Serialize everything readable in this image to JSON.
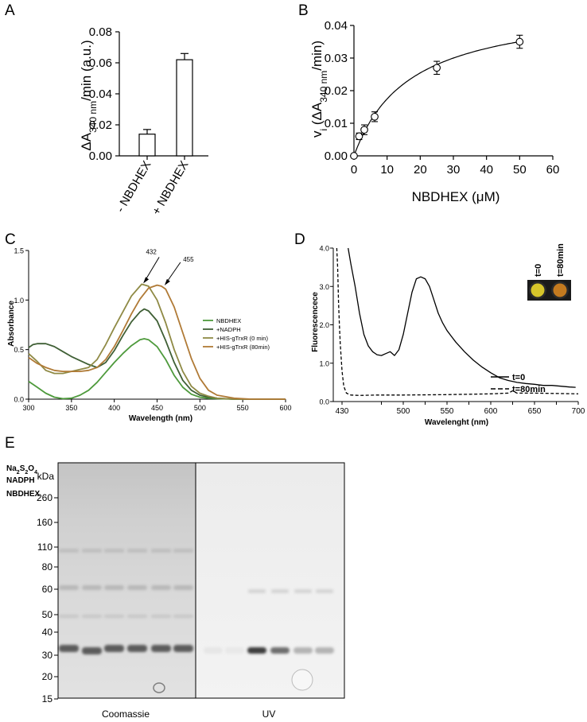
{
  "panel_letters": {
    "a": "A",
    "b": "B",
    "c": "C",
    "d": "D",
    "e": "E"
  },
  "chart_data": [
    {
      "panel": "A",
      "type": "bar",
      "categories": [
        "- NBDHEX",
        "+ NBDHEX"
      ],
      "values": [
        0.014,
        0.062
      ],
      "errors": [
        0.003,
        0.004
      ],
      "ylabel_parts": {
        "pre": "ΔA",
        "sub": "340 nm",
        "post": "/min (a.u.)"
      },
      "yticks": [
        "0.00",
        "0.02",
        "0.04",
        "0.06",
        "0.08"
      ],
      "ylim": [
        0,
        0.08
      ],
      "bar_fill": "#ffffff",
      "bar_stroke": "#000000"
    },
    {
      "panel": "B",
      "type": "scatter",
      "x": [
        0,
        1.56,
        3.125,
        6.25,
        25,
        50
      ],
      "y": [
        0.0,
        0.006,
        0.008,
        0.012,
        0.027,
        0.035
      ],
      "yerr": [
        0.0,
        0.001,
        0.0015,
        0.0015,
        0.002,
        0.002
      ],
      "fit": {
        "model": "michaelis-menten",
        "vmax": 0.0468,
        "km": 16.8
      },
      "xlabel": "NBDHEX (μM)",
      "ylabel_parts": {
        "pre": "v",
        "sub_i": "i",
        "mid": " (ΔA",
        "sub": "340 nm",
        "post": "/min)"
      },
      "xticks": [
        "0",
        "10",
        "20",
        "30",
        "40",
        "50",
        "60"
      ],
      "yticks": [
        "0.00",
        "0.01",
        "0.02",
        "0.03",
        "0.04"
      ],
      "xlim": [
        0,
        60
      ],
      "ylim": [
        0,
        0.04
      ]
    },
    {
      "panel": "C",
      "type": "line",
      "xlabel": "Wavelength (nm)",
      "ylabel": "Absorbance",
      "xticks": [
        "300",
        "350",
        "400",
        "450",
        "500",
        "550",
        "600"
      ],
      "yticks": [
        "0.0",
        "0.5",
        "1.0",
        "1.5"
      ],
      "xlim": [
        300,
        600
      ],
      "ylim": [
        0,
        1.5
      ],
      "annotations": [
        {
          "text": "432",
          "x": 432,
          "y": 1.16
        },
        {
          "text": "455",
          "x": 455,
          "y": 1.14
        }
      ],
      "legend_position": "right",
      "series": [
        {
          "name": "NBDHEX",
          "color": "#4e9a3c",
          "x": [
            300,
            310,
            320,
            330,
            340,
            350,
            360,
            370,
            380,
            390,
            400,
            410,
            420,
            430,
            435,
            440,
            450,
            460,
            470,
            480,
            490,
            500,
            510,
            520,
            540,
            560,
            600
          ],
          "y": [
            0.18,
            0.12,
            0.06,
            0.02,
            0.005,
            0.01,
            0.04,
            0.09,
            0.17,
            0.27,
            0.37,
            0.46,
            0.54,
            0.6,
            0.61,
            0.6,
            0.53,
            0.4,
            0.24,
            0.12,
            0.05,
            0.02,
            0.01,
            0.005,
            0.0,
            0.0,
            0.0
          ]
        },
        {
          "name": "+NADPH",
          "color": "#3f5f35",
          "x": [
            300,
            305,
            310,
            320,
            330,
            340,
            350,
            360,
            370,
            380,
            390,
            400,
            410,
            420,
            430,
            435,
            440,
            450,
            460,
            470,
            480,
            490,
            500,
            510,
            520,
            540,
            560,
            600
          ],
          "y": [
            0.52,
            0.55,
            0.56,
            0.56,
            0.53,
            0.48,
            0.43,
            0.39,
            0.35,
            0.32,
            0.37,
            0.49,
            0.64,
            0.78,
            0.88,
            0.91,
            0.89,
            0.79,
            0.59,
            0.37,
            0.19,
            0.09,
            0.04,
            0.02,
            0.01,
            0.0,
            0.0,
            0.0
          ]
        },
        {
          "name": "+HIS-gTrxR (0 min)",
          "color": "#8f8a45",
          "x": [
            300,
            310,
            320,
            330,
            340,
            350,
            360,
            370,
            380,
            390,
            400,
            410,
            420,
            430,
            432,
            440,
            450,
            460,
            470,
            480,
            490,
            500,
            510,
            520,
            540,
            560,
            600
          ],
          "y": [
            0.46,
            0.38,
            0.29,
            0.26,
            0.26,
            0.28,
            0.3,
            0.32,
            0.4,
            0.55,
            0.72,
            0.88,
            1.04,
            1.14,
            1.16,
            1.14,
            1.0,
            0.77,
            0.5,
            0.28,
            0.13,
            0.06,
            0.03,
            0.01,
            0.0,
            0.0,
            0.0
          ]
        },
        {
          "name": "+HIS-gTrxR  (80min)",
          "color": "#b07a36",
          "x": [
            300,
            310,
            320,
            330,
            340,
            350,
            360,
            370,
            380,
            390,
            400,
            410,
            420,
            430,
            440,
            450,
            455,
            460,
            470,
            480,
            490,
            500,
            510,
            520,
            540,
            560,
            600
          ],
          "y": [
            0.42,
            0.36,
            0.32,
            0.29,
            0.28,
            0.28,
            0.28,
            0.29,
            0.32,
            0.4,
            0.53,
            0.69,
            0.86,
            1.01,
            1.12,
            1.15,
            1.14,
            1.11,
            0.93,
            0.67,
            0.41,
            0.21,
            0.09,
            0.04,
            0.01,
            0.0,
            0.0
          ]
        }
      ]
    },
    {
      "panel": "D",
      "type": "line",
      "xlabel": "Wavelenght (nm)",
      "ylabel": "Fluorescencece",
      "xticks": [
        "430",
        "475",
        "500",
        "525",
        "550",
        "575",
        "600",
        "625",
        "650",
        "675",
        "700"
      ],
      "xtick_labels_shown": [
        "430",
        "500",
        "550",
        "600",
        "650",
        "700"
      ],
      "yticks": [
        "0.0",
        "1.0",
        "2.0",
        "3.0",
        "4.0"
      ],
      "xlim": [
        420,
        700
      ],
      "ylim": [
        0,
        4.0
      ],
      "legend_position": "right",
      "inset_labels": [
        "t=0",
        "t=80min"
      ],
      "inset_colors": [
        "#d6c52a",
        "#c47a1f"
      ],
      "series": [
        {
          "name": "t=0",
          "style": "solid",
          "x": [
            437,
            440,
            445,
            450,
            455,
            460,
            465,
            470,
            475,
            480,
            485,
            490,
            495,
            500,
            505,
            510,
            515,
            520,
            525,
            530,
            535,
            540,
            545,
            550,
            555,
            560,
            570,
            580,
            590,
            600,
            610,
            620,
            630,
            640,
            650,
            660,
            670,
            680,
            690,
            697
          ],
          "y": [
            4.0,
            3.6,
            3.0,
            2.3,
            1.75,
            1.45,
            1.3,
            1.22,
            1.2,
            1.25,
            1.3,
            1.2,
            1.35,
            1.75,
            2.3,
            2.85,
            3.2,
            3.25,
            3.2,
            3.0,
            2.65,
            2.3,
            2.05,
            1.85,
            1.7,
            1.55,
            1.3,
            1.08,
            0.9,
            0.75,
            0.62,
            0.55,
            0.5,
            0.47,
            0.45,
            0.42,
            0.42,
            0.4,
            0.38,
            0.37
          ]
        },
        {
          "name": "t=80min",
          "style": "dashed",
          "x": [
            424,
            425,
            426,
            427,
            428,
            430,
            432,
            435,
            440,
            450,
            470,
            500,
            550,
            600,
            620,
            625,
            630,
            650,
            700
          ],
          "y": [
            4.0,
            3.5,
            2.6,
            2.0,
            1.5,
            0.8,
            0.4,
            0.22,
            0.17,
            0.16,
            0.17,
            0.17,
            0.18,
            0.2,
            0.22,
            0.28,
            0.22,
            0.22,
            0.2
          ]
        }
      ]
    }
  ],
  "gel": {
    "row_labels": [
      {
        "pre": "Na",
        "sub1": "2",
        "mid": "S",
        "sub2": "2",
        "post": "O",
        "sub3": "4"
      },
      {
        "text": "NADPH"
      },
      {
        "text": "NBDHEX"
      }
    ],
    "lane_signs": [
      [
        "-",
        "-",
        "-",
        "-",
        "+",
        "+"
      ],
      [
        "-",
        "+",
        "-",
        "+",
        "+",
        "+"
      ],
      [
        "-",
        "-",
        "+",
        "+",
        "+",
        "+"
      ]
    ],
    "marker_unit": "kDa",
    "markers": [
      "260",
      "160",
      "110",
      "80",
      "60",
      "50",
      "40",
      "30",
      "20",
      "15"
    ],
    "panel_labels": [
      "Coomassie",
      "UV"
    ],
    "uv_band_intensity": [
      0.05,
      0.04,
      0.9,
      0.65,
      0.3,
      0.3
    ]
  }
}
